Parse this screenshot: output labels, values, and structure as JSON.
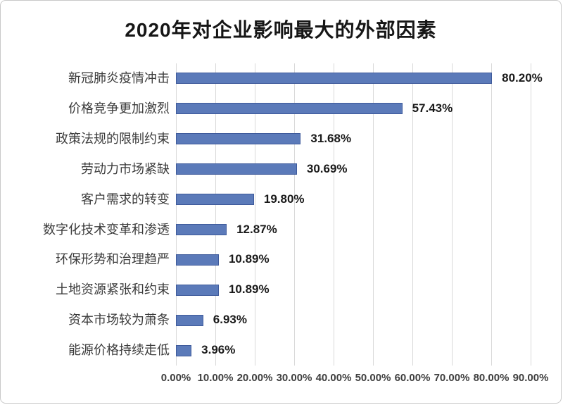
{
  "title": "2020年对企业影响最大的外部因素",
  "chart_data": {
    "type": "bar",
    "orientation": "horizontal",
    "title": "2020年对企业影响最大的外部因素",
    "categories": [
      "新冠肺炎疫情冲击",
      "价格竞争更加激烈",
      "政策法规的限制约束",
      "劳动力市场紧缺",
      "客户需求的转变",
      "数字化技术变革和渗透",
      "环保形势和治理趋严",
      "土地资源紧张和约束",
      "资本市场较为萧条",
      "能源价格持续走低"
    ],
    "values": [
      80.2,
      57.43,
      31.68,
      30.69,
      19.8,
      12.87,
      10.89,
      10.89,
      6.93,
      3.96
    ],
    "value_labels": [
      "80.20%",
      "57.43%",
      "31.68%",
      "30.69%",
      "19.80%",
      "12.87%",
      "10.89%",
      "10.89%",
      "6.93%",
      "3.96%"
    ],
    "x_ticks": [
      "0.00%",
      "10.00%",
      "20.00%",
      "30.00%",
      "40.00%",
      "50.00%",
      "60.00%",
      "70.00%",
      "80.00%",
      "90.00%"
    ],
    "xlim": [
      0,
      90
    ],
    "grid": true,
    "legend": "none",
    "colors": {
      "bar_fill": "#5b7ab9",
      "bar_border": "#3e5a9b",
      "gridline": "#d9d9d9",
      "category_label": "#3b3b3b",
      "value_label": "#1a1a1a",
      "tick_label": "#3f3f3f",
      "background": "#ffffff",
      "frame_border": "#c9c9c9"
    }
  }
}
